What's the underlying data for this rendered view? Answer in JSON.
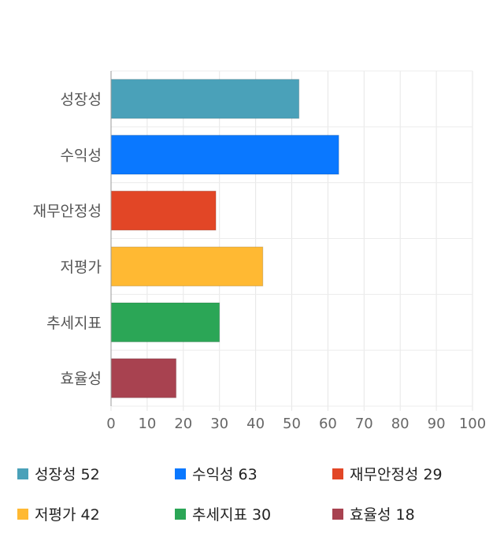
{
  "chart_data": {
    "type": "bar",
    "orientation": "horizontal",
    "categories": [
      "성장성",
      "수익성",
      "재무안정성",
      "저평가",
      "추세지표",
      "효율성"
    ],
    "values": [
      52,
      63,
      29,
      42,
      30,
      18
    ],
    "colors": [
      "#4aa1b9",
      "#0a78ff",
      "#e24626",
      "#ffb933",
      "#2ba656",
      "#a84250"
    ],
    "xlim": [
      0,
      100
    ],
    "ticks": [
      "0",
      "10",
      "20",
      "30",
      "40",
      "50",
      "60",
      "70",
      "80",
      "90",
      "100"
    ],
    "grid": true,
    "legend_position": "bottom"
  },
  "legend": [
    {
      "label": "성장성 52",
      "color": "#4aa1b9"
    },
    {
      "label": "수익성 63",
      "color": "#0a78ff"
    },
    {
      "label": "재무안정성 29",
      "color": "#e24626"
    },
    {
      "label": "저평가 42",
      "color": "#ffb933"
    },
    {
      "label": "추세지표 30",
      "color": "#2ba656"
    },
    {
      "label": "효율성 18",
      "color": "#a84250"
    }
  ]
}
